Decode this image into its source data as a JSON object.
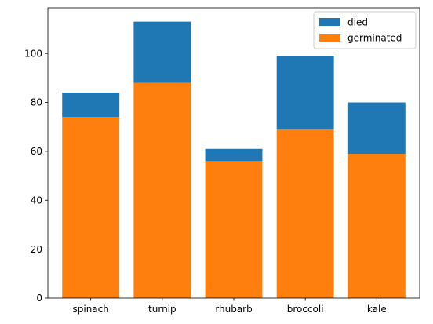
{
  "chart_data": {
    "type": "bar",
    "stacked": true,
    "categories": [
      "spinach",
      "turnip",
      "rhubarb",
      "broccoli",
      "kale"
    ],
    "series": [
      {
        "name": "germinated",
        "color": "#ff7f0e",
        "values": [
          74,
          88,
          56,
          69,
          59
        ]
      },
      {
        "name": "died",
        "color": "#1f77b4",
        "values": [
          10,
          25,
          5,
          30,
          21
        ]
      }
    ],
    "ylim": [
      0,
      118.65
    ],
    "yticks": [
      0,
      20,
      40,
      60,
      80,
      100
    ],
    "grid": false,
    "legend": {
      "position": "top-right",
      "entries": [
        {
          "label": "died",
          "color": "#1f77b4"
        },
        {
          "label": "germinated",
          "color": "#ff7f0e"
        }
      ]
    }
  }
}
